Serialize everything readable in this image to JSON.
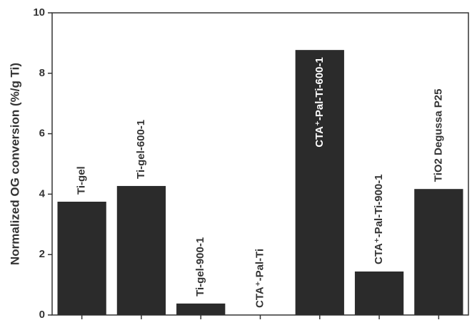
{
  "chart_data": {
    "type": "bar",
    "y_label": "Normalized OG conversion (%/g Ti)",
    "categories": [
      "Ti-gel",
      "Ti-gel-600-1",
      "Ti-gel-900-1",
      "CTA⁺-Pal-Ti",
      "CTA⁺-Pal-Ti-600-1",
      "CTA⁺-Pal-Ti-900-1",
      "TiO2 Degussa P25"
    ],
    "values": [
      3.75,
      4.27,
      0.38,
      0,
      8.77,
      1.44,
      4.17
    ],
    "color": "#2b2b2b",
    "ylim": [
      0,
      10
    ],
    "yticks": [
      0,
      2,
      4,
      6,
      8,
      10
    ]
  }
}
